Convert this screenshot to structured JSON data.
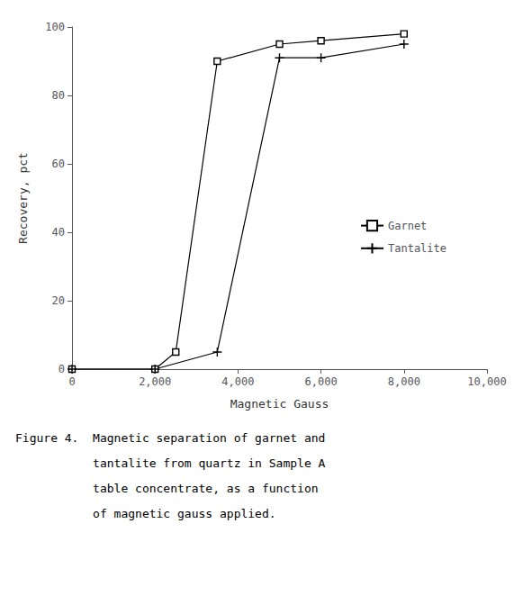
{
  "chart_data": {
    "type": "line",
    "xlabel": "Magnetic Gauss",
    "ylabel": "Recovery, pct",
    "xlim": [
      0,
      10000
    ],
    "ylim": [
      0,
      100
    ],
    "xticks": [
      0,
      2000,
      4000,
      6000,
      8000,
      10000
    ],
    "yticks": [
      0,
      20,
      40,
      60,
      80,
      100
    ],
    "grid": false,
    "legend": "right",
    "series": [
      {
        "name": "Garnet",
        "color": "#000000",
        "marker": "square",
        "x": [
          0,
          2000,
          2500,
          3500,
          5000,
          6000,
          8000
        ],
        "values": [
          0,
          0,
          5,
          90,
          95,
          96,
          98
        ]
      },
      {
        "name": "Tantalite",
        "color": "#000000",
        "marker": "plus",
        "x": [
          0,
          2000,
          3500,
          5000,
          6000,
          8000
        ],
        "values": [
          0,
          0,
          5,
          91,
          91,
          95
        ]
      }
    ],
    "annotations": [
      "Figure 4.  Magnetic separation of garnet and",
      "           tantalite from quartz in Sample A",
      "           table concentrate, as a function",
      "           of magnetic gauss applied."
    ]
  }
}
